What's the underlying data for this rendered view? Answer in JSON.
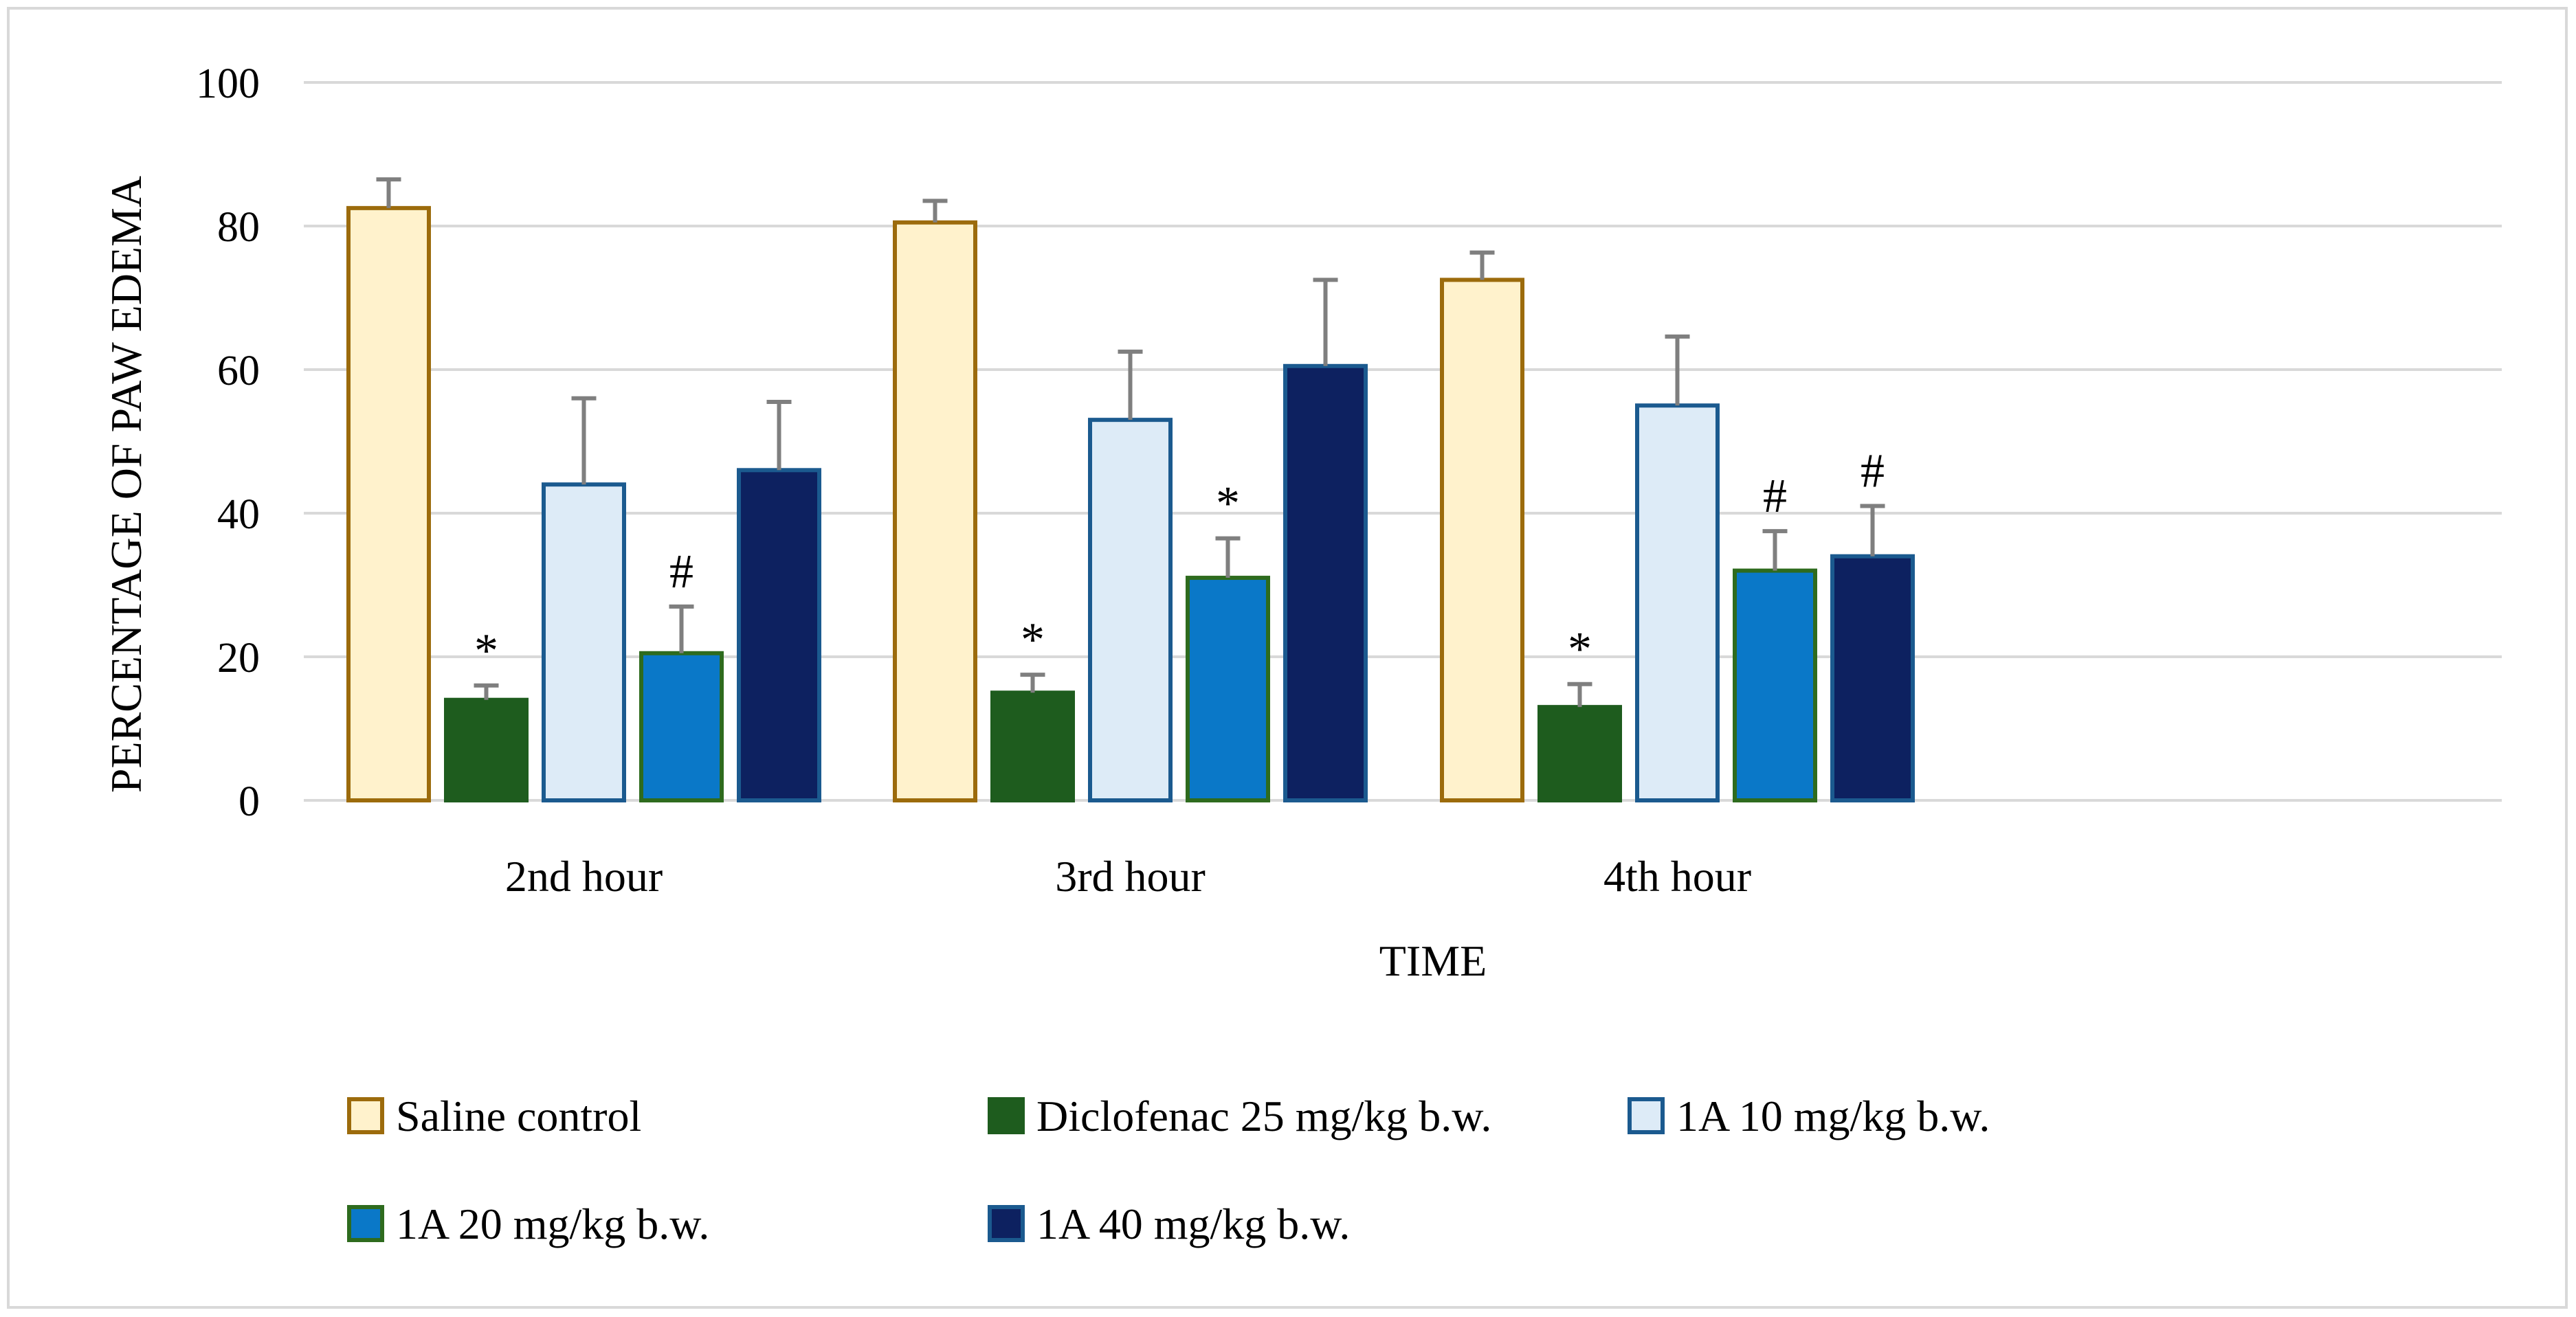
{
  "chart_data": {
    "type": "bar",
    "title": "",
    "xlabel": "TIME",
    "ylabel": "PERCENTAGE OF PAW EDEMA",
    "ylim": [
      0,
      100
    ],
    "yticks": [
      "0",
      "20",
      "40",
      "60",
      "80",
      "100"
    ],
    "ytick_values": [
      0,
      20,
      40,
      60,
      80,
      100
    ],
    "grid": true,
    "legend_position": "bottom",
    "categories": [
      "2nd hour",
      "3rd hour",
      "4th hour"
    ],
    "series": [
      {
        "name": "Saline control",
        "fill": "#fff2cc",
        "stroke": "#9c6b0c",
        "values": [
          82.5,
          80.5,
          72.5
        ],
        "errors": [
          4.0,
          3.0,
          3.8
        ],
        "markers": [
          "",
          "",
          ""
        ]
      },
      {
        "name": "Diclofenac 25 mg/kg b.w.",
        "fill": "#1e5c1e",
        "stroke": "#1e5c1e",
        "values": [
          14.0,
          15.0,
          13.0
        ],
        "errors": [
          2.0,
          2.5,
          3.2
        ],
        "markers": [
          "*",
          "*",
          "*"
        ]
      },
      {
        "name": "1A 10 mg/kg b.w.",
        "fill": "#ddebf7",
        "stroke": "#1b5a8f",
        "values": [
          44.0,
          53.0,
          55.0
        ],
        "errors": [
          12.0,
          9.5,
          9.6
        ],
        "markers": [
          "",
          "",
          ""
        ]
      },
      {
        "name": "1A 20 mg/kg b.w.",
        "fill": "#0a78c8",
        "stroke": "#2e6b1e",
        "values": [
          20.5,
          31.0,
          32.0
        ],
        "errors": [
          6.5,
          5.5,
          5.5
        ],
        "markers": [
          "#",
          "*",
          "#"
        ]
      },
      {
        "name": "1A 40 mg/kg b.w.",
        "fill": "#0d2160",
        "stroke": "#1b5a8f",
        "values": [
          46.0,
          60.5,
          34.0
        ],
        "errors": [
          9.5,
          12.0,
          7.0
        ],
        "markers": [
          "",
          "",
          "#"
        ]
      }
    ]
  }
}
